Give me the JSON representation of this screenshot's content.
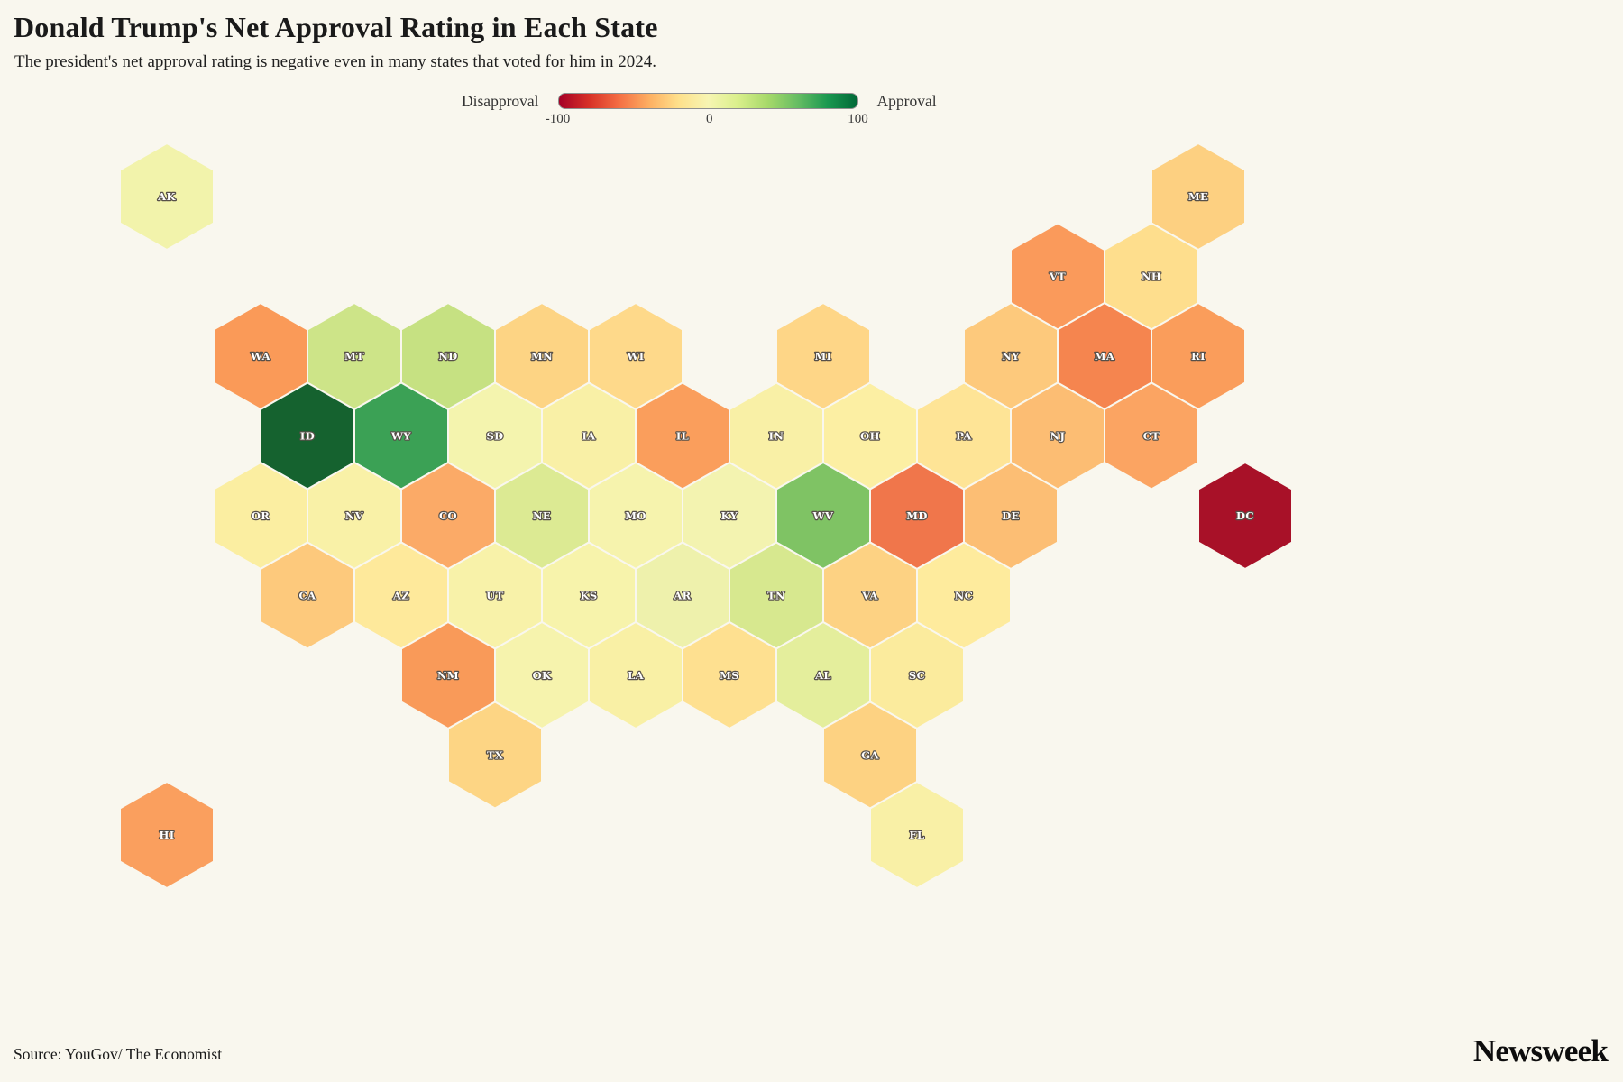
{
  "header": {
    "title": "Donald Trump's Net Approval Rating in Each State",
    "subtitle": "The president's net approval rating is negative even in many states that voted for him in 2024."
  },
  "legend": {
    "left_label": "Disapproval",
    "right_label": "Approval",
    "ticks": [
      "-100",
      "0",
      "100"
    ],
    "gradient": [
      "#a50026",
      "#d73027",
      "#f46d43",
      "#fdae61",
      "#fee08b",
      "#f7f5b2",
      "#d9ef8b",
      "#a6d96a",
      "#66bd63",
      "#1a9850",
      "#006837"
    ]
  },
  "footer": {
    "source": "Source: YouGov/ The Economist",
    "brand": "Newsweek"
  },
  "colors": {
    "background": "#f9f7ee"
  },
  "chart_data": {
    "type": "hexmap",
    "title": "Donald Trump's Net Approval Rating in Each State",
    "colorscale": {
      "label_min": "Disapproval",
      "label_max": "Approval",
      "domain": [
        -100,
        100
      ]
    },
    "states": [
      {
        "abbr": "AK",
        "row": 0,
        "col": 0,
        "net_approval": 2,
        "color": "#f2f3ab"
      },
      {
        "abbr": "ME",
        "row": 0,
        "col": 22,
        "net_approval": -20,
        "color": "#fdd081"
      },
      {
        "abbr": "VT",
        "row": 1,
        "col": 19,
        "net_approval": -35,
        "color": "#fa9a5b"
      },
      {
        "abbr": "NH",
        "row": 1,
        "col": 21,
        "net_approval": -15,
        "color": "#fede8d"
      },
      {
        "abbr": "WA",
        "row": 2,
        "col": 2,
        "net_approval": -35,
        "color": "#fa9a58"
      },
      {
        "abbr": "MT",
        "row": 2,
        "col": 4,
        "net_approval": 15,
        "color": "#cde488"
      },
      {
        "abbr": "ND",
        "row": 2,
        "col": 6,
        "net_approval": 18,
        "color": "#c6e182"
      },
      {
        "abbr": "MN",
        "row": 2,
        "col": 8,
        "net_approval": -18,
        "color": "#fdd484"
      },
      {
        "abbr": "WI",
        "row": 2,
        "col": 10,
        "net_approval": -16,
        "color": "#fed98a"
      },
      {
        "abbr": "MI",
        "row": 2,
        "col": 14,
        "net_approval": -17,
        "color": "#fed687"
      },
      {
        "abbr": "NY",
        "row": 2,
        "col": 18,
        "net_approval": -22,
        "color": "#fdc97c"
      },
      {
        "abbr": "MA",
        "row": 2,
        "col": 20,
        "net_approval": -40,
        "color": "#f5854f"
      },
      {
        "abbr": "RI",
        "row": 2,
        "col": 22,
        "net_approval": -33,
        "color": "#fa9d5b"
      },
      {
        "abbr": "ID",
        "row": 3,
        "col": 3,
        "net_approval": 65,
        "color": "#15622f"
      },
      {
        "abbr": "WY",
        "row": 3,
        "col": 5,
        "net_approval": 45,
        "color": "#3ba155"
      },
      {
        "abbr": "SD",
        "row": 3,
        "col": 7,
        "net_approval": 0,
        "color": "#f4f4ae"
      },
      {
        "abbr": "IA",
        "row": 3,
        "col": 9,
        "net_approval": -5,
        "color": "#f9f0a6"
      },
      {
        "abbr": "IL",
        "row": 3,
        "col": 11,
        "net_approval": -33,
        "color": "#fa9e5c"
      },
      {
        "abbr": "IN",
        "row": 3,
        "col": 13,
        "net_approval": -5,
        "color": "#f9f0a6"
      },
      {
        "abbr": "OH",
        "row": 3,
        "col": 15,
        "net_approval": -7,
        "color": "#fcefa3"
      },
      {
        "abbr": "PA",
        "row": 3,
        "col": 17,
        "net_approval": -12,
        "color": "#fee496"
      },
      {
        "abbr": "NJ",
        "row": 3,
        "col": 19,
        "net_approval": -25,
        "color": "#fcbd73"
      },
      {
        "abbr": "CT",
        "row": 3,
        "col": 21,
        "net_approval": -30,
        "color": "#fba462"
      },
      {
        "abbr": "OR",
        "row": 4,
        "col": 2,
        "net_approval": -8,
        "color": "#fbeea1"
      },
      {
        "abbr": "NV",
        "row": 4,
        "col": 4,
        "net_approval": -5,
        "color": "#f9f1a7"
      },
      {
        "abbr": "CO",
        "row": 4,
        "col": 6,
        "net_approval": -28,
        "color": "#fbaa67"
      },
      {
        "abbr": "NE",
        "row": 4,
        "col": 8,
        "net_approval": 10,
        "color": "#dcea93"
      },
      {
        "abbr": "MO",
        "row": 4,
        "col": 10,
        "net_approval": -2,
        "color": "#f6f3ad"
      },
      {
        "abbr": "KY",
        "row": 4,
        "col": 12,
        "net_approval": 0,
        "color": "#f3f3b0"
      },
      {
        "abbr": "WV",
        "row": 4,
        "col": 14,
        "net_approval": 30,
        "color": "#7fc364"
      },
      {
        "abbr": "MD",
        "row": 4,
        "col": 16,
        "net_approval": -45,
        "color": "#f0764b"
      },
      {
        "abbr": "DE",
        "row": 4,
        "col": 18,
        "net_approval": -25,
        "color": "#fcbe74"
      },
      {
        "abbr": "DC",
        "row": 4,
        "col": 23,
        "net_approval": -80,
        "color": "#a81128"
      },
      {
        "abbr": "CA",
        "row": 5,
        "col": 3,
        "net_approval": -22,
        "color": "#fdc97c"
      },
      {
        "abbr": "AZ",
        "row": 5,
        "col": 5,
        "net_approval": -10,
        "color": "#fee99b"
      },
      {
        "abbr": "UT",
        "row": 5,
        "col": 7,
        "net_approval": -4,
        "color": "#f8f2a9"
      },
      {
        "abbr": "KS",
        "row": 5,
        "col": 9,
        "net_approval": -3,
        "color": "#f7f3ab"
      },
      {
        "abbr": "AR",
        "row": 5,
        "col": 11,
        "net_approval": 2,
        "color": "#eef1ac"
      },
      {
        "abbr": "TN",
        "row": 5,
        "col": 13,
        "net_approval": 12,
        "color": "#d7e88f"
      },
      {
        "abbr": "VA",
        "row": 5,
        "col": 15,
        "net_approval": -18,
        "color": "#fdd283"
      },
      {
        "abbr": "NC",
        "row": 5,
        "col": 17,
        "net_approval": -9,
        "color": "#feeb9d"
      },
      {
        "abbr": "NM",
        "row": 6,
        "col": 6,
        "net_approval": -35,
        "color": "#f99a59"
      },
      {
        "abbr": "OK",
        "row": 6,
        "col": 8,
        "net_approval": -2,
        "color": "#f6f3ad"
      },
      {
        "abbr": "LA",
        "row": 6,
        "col": 10,
        "net_approval": -6,
        "color": "#f9f0a5"
      },
      {
        "abbr": "MS",
        "row": 6,
        "col": 12,
        "net_approval": -14,
        "color": "#fee090"
      },
      {
        "abbr": "AL",
        "row": 6,
        "col": 14,
        "net_approval": 7,
        "color": "#e4ee9c"
      },
      {
        "abbr": "SC",
        "row": 6,
        "col": 16,
        "net_approval": -10,
        "color": "#fbeb9d"
      },
      {
        "abbr": "TX",
        "row": 7,
        "col": 7,
        "net_approval": -17,
        "color": "#fdd584"
      },
      {
        "abbr": "GA",
        "row": 7,
        "col": 15,
        "net_approval": -18,
        "color": "#fdd282"
      },
      {
        "abbr": "HI",
        "row": 8,
        "col": 0,
        "net_approval": -32,
        "color": "#fa9f5e"
      },
      {
        "abbr": "FL",
        "row": 8,
        "col": 16,
        "net_approval": -5,
        "color": "#f9f0a6"
      }
    ]
  }
}
